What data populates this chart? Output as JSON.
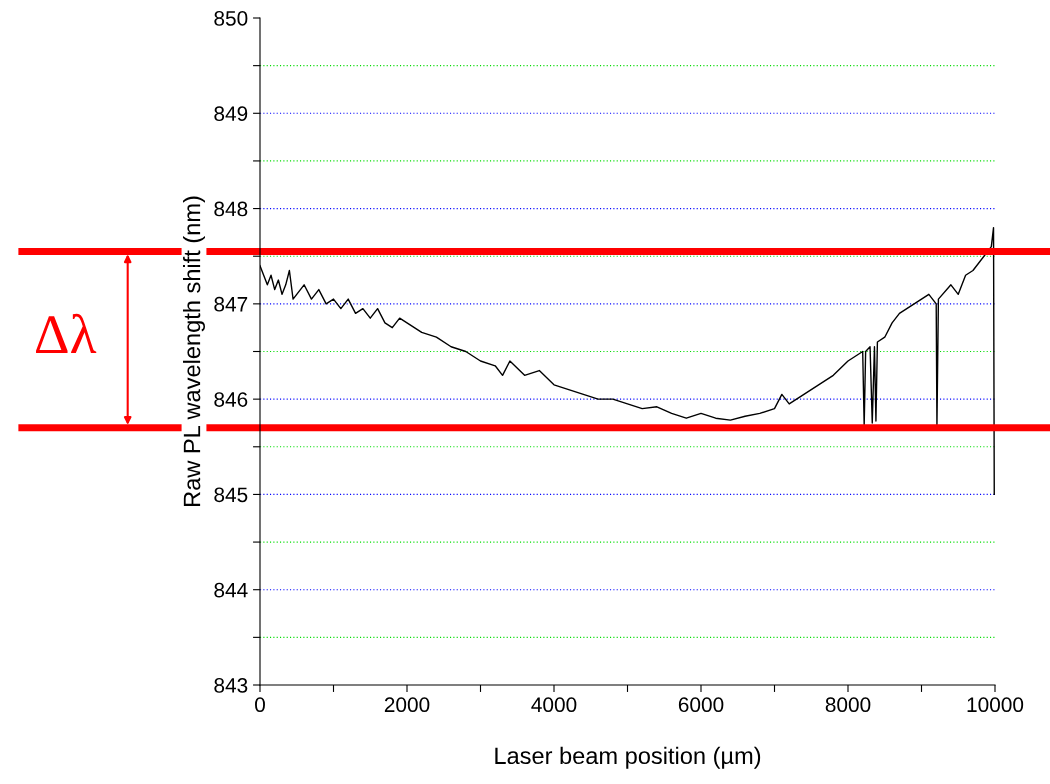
{
  "chart_data": {
    "type": "line",
    "xlabel": "Laser beam position (µm)",
    "ylabel": "Raw PL wavelength shift (nm)",
    "xlim": [
      0,
      10000
    ],
    "ylim": [
      843,
      850
    ],
    "xticks": [
      0,
      {
        "value": 1000,
        "label": null
      },
      2000,
      {
        "value": 3000,
        "label": null
      },
      4000,
      {
        "value": 5000,
        "label": null
      },
      6000,
      {
        "value": 7000,
        "label": null
      },
      8000,
      {
        "value": 9000,
        "label": null
      },
      10000
    ],
    "yticks": [
      843,
      {
        "value": 843.5,
        "label": null
      },
      844,
      {
        "value": 844.5,
        "label": null
      },
      845,
      {
        "value": 845.5,
        "label": null
      },
      846,
      {
        "value": 846.5,
        "label": null
      },
      847,
      {
        "value": 847.5,
        "label": null
      },
      848,
      {
        "value": 848.5,
        "label": null
      },
      849,
      {
        "value": 849.5,
        "label": null
      },
      850
    ],
    "grid": "y",
    "marker": "none",
    "line_style": "solid",
    "series": [
      {
        "color": "#000000",
        "x": [
          0,
          50,
          100,
          150,
          200,
          250,
          300,
          350,
          400,
          450,
          600,
          700,
          800,
          900,
          1000,
          1100,
          1200,
          1300,
          1400,
          1500,
          1600,
          1700,
          1800,
          1900,
          2000,
          2200,
          2400,
          2600,
          2800,
          3000,
          3200,
          3300,
          3400,
          3600,
          3800,
          4000,
          4200,
          4400,
          4600,
          4800,
          5000,
          5200,
          5400,
          5600,
          5800,
          6000,
          6200,
          6400,
          6600,
          6800,
          7000,
          7100,
          7200,
          7400,
          7600,
          7800,
          8000,
          8100,
          8200,
          8220,
          8240,
          8300,
          8330,
          8360,
          8380,
          8400,
          8500,
          8600,
          8700,
          8800,
          9000,
          9100,
          9200,
          9210,
          9230,
          9400,
          9500,
          9600,
          9700,
          9800,
          9900,
          9950,
          9980,
          9990
        ],
        "values": [
          847.4,
          847.3,
          847.2,
          847.3,
          847.15,
          847.25,
          847.1,
          847.2,
          847.35,
          847.05,
          847.2,
          847.05,
          847.15,
          847.0,
          847.05,
          846.95,
          847.05,
          846.9,
          846.95,
          846.85,
          846.95,
          846.8,
          846.75,
          846.85,
          846.8,
          846.7,
          846.65,
          846.55,
          846.5,
          846.4,
          846.35,
          846.25,
          846.4,
          846.25,
          846.3,
          846.15,
          846.1,
          846.05,
          846.0,
          846.0,
          845.95,
          845.9,
          845.92,
          845.85,
          845.8,
          845.85,
          845.8,
          845.78,
          845.82,
          845.85,
          845.9,
          846.05,
          845.95,
          846.05,
          846.15,
          846.25,
          846.4,
          846.45,
          846.5,
          845.72,
          846.5,
          846.55,
          845.75,
          846.55,
          845.77,
          846.6,
          846.65,
          846.8,
          846.9,
          846.95,
          847.05,
          847.1,
          847.0,
          845.72,
          847.05,
          847.2,
          847.1,
          847.3,
          847.35,
          847.45,
          847.55,
          847.6,
          847.8,
          845.0
        ]
      }
    ],
    "ref_lines": [
      {
        "axis": "y",
        "value": 847.55,
        "color": "#ff0000"
      },
      {
        "axis": "y",
        "value": 845.7,
        "color": "#ff0000"
      }
    ],
    "annotations": [
      "Δλ"
    ]
  }
}
